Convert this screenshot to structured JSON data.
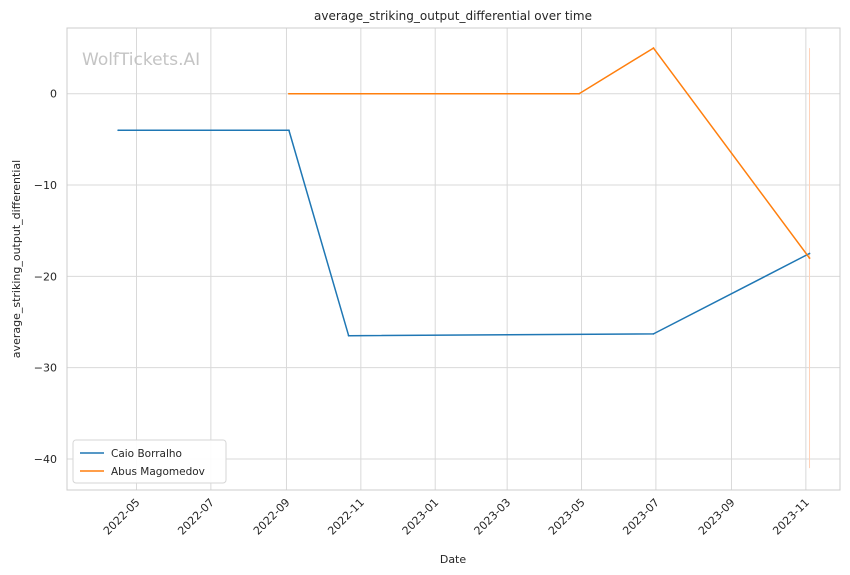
{
  "watermark": "WolfTickets.AI",
  "chart_data": {
    "type": "line",
    "title": "average_striking_output_differential over time",
    "xlabel": "Date",
    "ylabel": "average_striking_output_differential",
    "xlim": [
      "2022-03-05",
      "2023-11-29"
    ],
    "ylim": [
      -43.4,
      7.2
    ],
    "x_ticks": [
      "2022-05",
      "2022-07",
      "2022-09",
      "2022-11",
      "2023-01",
      "2023-03",
      "2023-05",
      "2023-07",
      "2023-09",
      "2023-11"
    ],
    "y_ticks": [
      0,
      -10,
      -20,
      -30,
      -40
    ],
    "y_tick_labels": [
      "0",
      "−10",
      "−20",
      "−30",
      "−40"
    ],
    "grid": true,
    "legend_position": "lower-left",
    "series": [
      {
        "name": "Caio Borralho",
        "color": "#1f77b4",
        "points": [
          {
            "x": "2022-04-16",
            "y": -4
          },
          {
            "x": "2022-09-03",
            "y": -4
          },
          {
            "x": "2022-10-22",
            "y": -26.5
          },
          {
            "x": "2023-06-29",
            "y": -26.3
          },
          {
            "x": "2023-11-04",
            "y": -17.5
          }
        ]
      },
      {
        "name": "Abus Magomedov",
        "color": "#ff7f0e",
        "points": [
          {
            "x": "2022-09-03",
            "y": 0
          },
          {
            "x": "2023-04-29",
            "y": 0
          },
          {
            "x": "2023-06-29",
            "y": 5
          },
          {
            "x": "2023-11-04",
            "y": -18
          }
        ]
      }
    ],
    "vertical_markers": [
      {
        "x": "2023-11-04",
        "y_from": -41,
        "y_to": 5,
        "color": "#ffd2b8"
      }
    ]
  }
}
